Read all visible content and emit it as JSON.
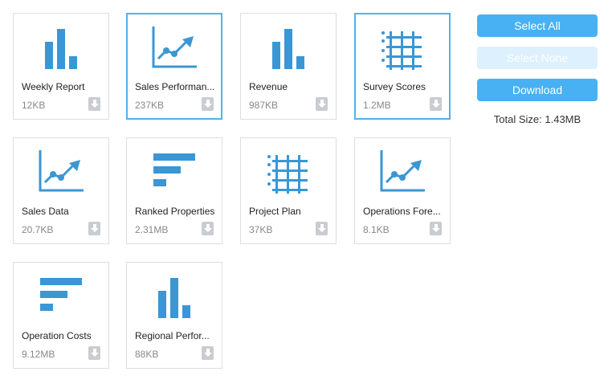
{
  "files": [
    {
      "name": "Weekly Report",
      "size": "12KB",
      "icon": "bar-chart-icon",
      "selected": false
    },
    {
      "name": "Sales Performan...",
      "size": "237KB",
      "icon": "line-chart-icon",
      "selected": true
    },
    {
      "name": "Revenue",
      "size": "987KB",
      "icon": "bar-chart-icon",
      "selected": false
    },
    {
      "name": "Survey Scores",
      "size": "1.2MB",
      "icon": "grid-table-icon",
      "selected": true
    },
    {
      "name": "Sales Data",
      "size": "20.7KB",
      "icon": "line-chart-icon",
      "selected": false
    },
    {
      "name": "Ranked Properties",
      "size": "2.31MB",
      "icon": "horizontal-bar-chart-icon",
      "selected": false
    },
    {
      "name": "Project Plan",
      "size": "37KB",
      "icon": "grid-table-icon",
      "selected": false
    },
    {
      "name": "Operations Fore...",
      "size": "8.1KB",
      "icon": "line-chart-icon",
      "selected": false
    },
    {
      "name": "Operation Costs",
      "size": "9.12MB",
      "icon": "horizontal-bar-chart-icon",
      "selected": false
    },
    {
      "name": "Regional Perfor...",
      "size": "88KB",
      "icon": "bar-chart-icon",
      "selected": false
    }
  ],
  "actions": {
    "select_all": "Select All",
    "select_none": "Select None",
    "download": "Download"
  },
  "total_size": "Total Size: 1.43MB",
  "colors": {
    "accent": "#48b1f4",
    "icon": "#3a97d4",
    "selected_border": "#4fb3ee",
    "disabled_button": "#dcf0fd"
  }
}
